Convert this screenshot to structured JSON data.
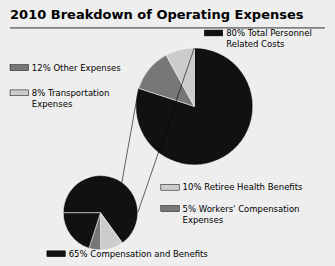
{
  "chart_data": [
    {
      "type": "pie",
      "title": "2010 Breakdown of Operating Expenses",
      "categories": [
        "80% Total Personnel\nRelated Costs",
        "12% Other Expenses",
        "8% Transportation\nExpenses"
      ],
      "values": [
        80,
        12,
        8
      ],
      "colors": [
        "#111111",
        "#777777",
        "#cccccc"
      ]
    },
    {
      "type": "pie",
      "categories": [
        "65% Compensation and Benefits",
        "10% Retiree Health Benefits",
        "5% Workers' Compensation\nExpenses",
        null
      ],
      "values": [
        65,
        10,
        5,
        20
      ],
      "colors": [
        "#111111",
        "#cccccc",
        "#777777",
        "#111111"
      ]
    }
  ]
}
